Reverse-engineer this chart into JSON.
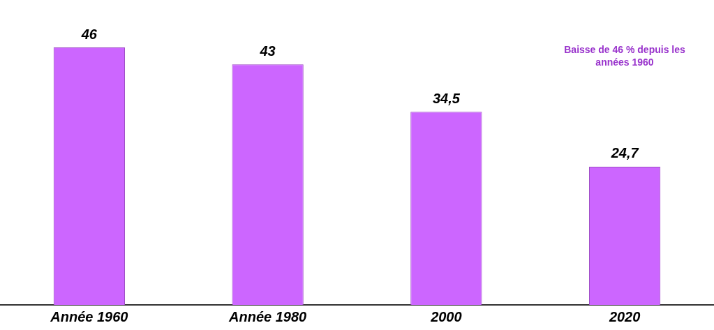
{
  "chart_data": {
    "type": "bar",
    "categories": [
      "Année 1960",
      "Année 1980",
      "2000",
      "2020"
    ],
    "values": [
      46,
      43,
      34.5,
      24.7
    ],
    "color": "#cc66ff",
    "value_labels": [
      "46",
      "43",
      "34,5",
      "24,7"
    ],
    "annotations": [
      "Baisse de 46 % depuis les années 1960"
    ]
  }
}
